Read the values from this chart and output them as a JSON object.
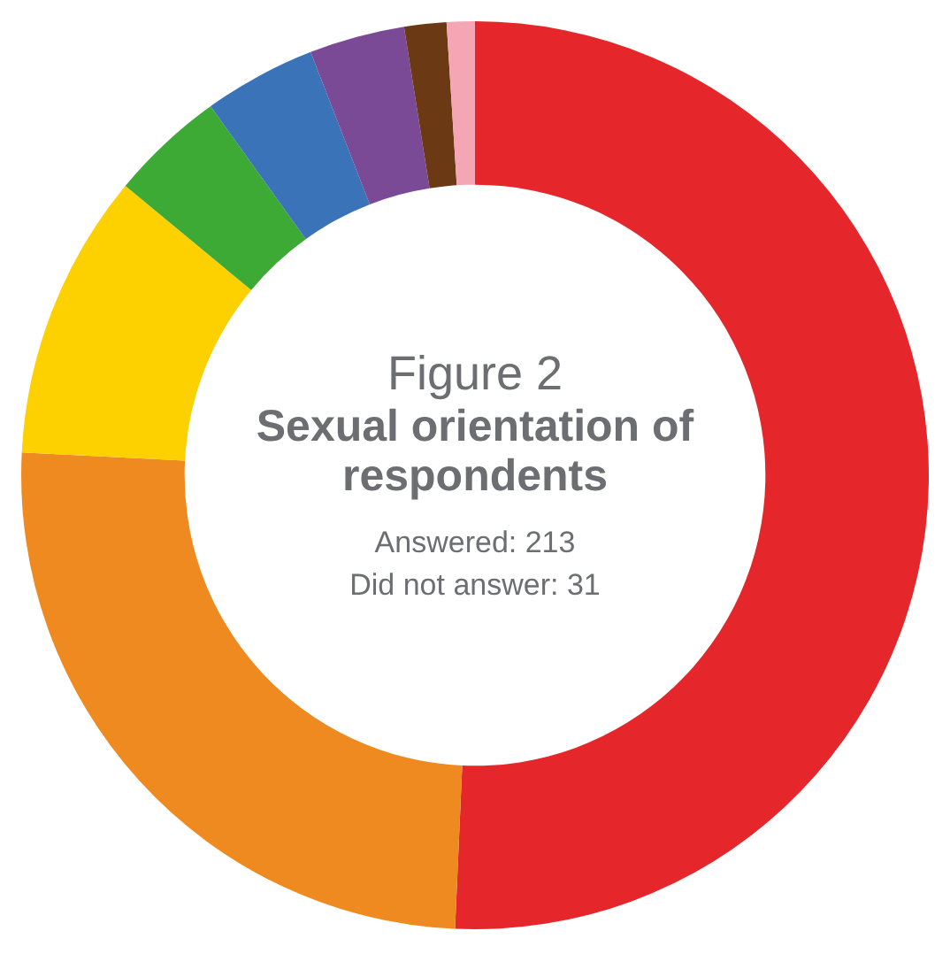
{
  "chart_data": {
    "type": "donut",
    "title": "Figure 2",
    "subtitle": "Sexual orientation of respondents",
    "annotations": [
      "Answered: 213",
      "Did not answer: 31"
    ],
    "categories": [
      null,
      null,
      null,
      null,
      null,
      null,
      null,
      null
    ],
    "values": [
      50.7,
      25.1,
      10.2,
      4.1,
      4.0,
      3.4,
      1.5,
      1.0
    ],
    "colors": [
      "#e5262a",
      "#ef8a20",
      "#fdd000",
      "#3daa35",
      "#3b73b9",
      "#7b4a97",
      "#6b3a14",
      "#f4a6b4"
    ],
    "legend": false
  }
}
